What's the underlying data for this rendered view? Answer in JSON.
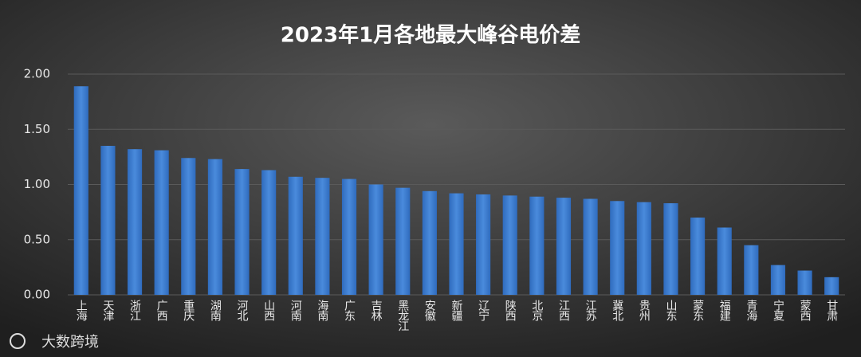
{
  "chart_data": {
    "type": "bar",
    "title": "2023年1月各地最大峰谷电价差",
    "categories": [
      "上海",
      "天津",
      "浙江",
      "广西",
      "重庆",
      "湖南",
      "河北",
      "山西",
      "河南",
      "海南",
      "广东",
      "吉林",
      "黑龙江",
      "安徽",
      "新疆",
      "辽宁",
      "陕西",
      "北京",
      "江西",
      "江苏",
      "冀北",
      "贵州",
      "山东",
      "蒙东",
      "福建",
      "青海",
      "宁夏",
      "蒙西",
      "甘肃"
    ],
    "values": [
      1.89,
      1.35,
      1.32,
      1.31,
      1.24,
      1.23,
      1.14,
      1.13,
      1.07,
      1.06,
      1.05,
      1.0,
      0.97,
      0.94,
      0.92,
      0.91,
      0.9,
      0.89,
      0.88,
      0.87,
      0.85,
      0.84,
      0.83,
      0.7,
      0.61,
      0.45,
      0.27,
      0.22,
      0.16
    ],
    "color": "#3f7fd0",
    "ylim": [
      0,
      2
    ],
    "yticks": [
      {
        "value": 0,
        "label": "0.00"
      },
      {
        "value": 0.5,
        "label": "0.50"
      },
      {
        "value": 1,
        "label": "1.00"
      },
      {
        "value": 1.5,
        "label": "1.50"
      },
      {
        "value": 2,
        "label": "2.00"
      }
    ],
    "grid": true,
    "source": "大数跨境"
  }
}
